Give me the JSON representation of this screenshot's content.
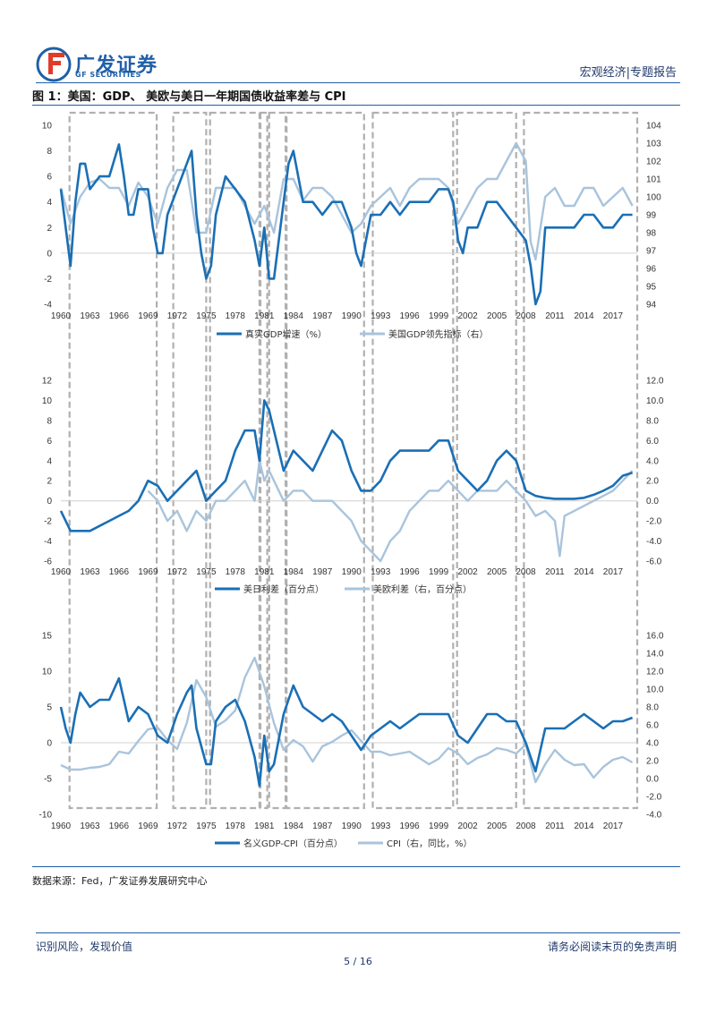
{
  "header": {
    "brand_cn": "广发证券",
    "brand_en": "GF SECURITIES",
    "doc_type": "宏观经济|专题报告"
  },
  "figure_title": "图 1：美国：GDP、 美欧与美日一年期国债收益率差与 CPI",
  "source": "数据来源：Fed，广发证券发展研究中心",
  "footer": {
    "left": "识别风险，发现价值",
    "right": "请务必阅读末页的免责声明",
    "page": "5 / 16"
  },
  "colors": {
    "primary": "#1a6fb5",
    "secondary": "#a9c4dc",
    "shade": "#b0b0b0",
    "accent": "#1f5fa8"
  },
  "recession_bands": [
    [
      1960.9,
      1969.9
    ],
    [
      1971.6,
      1975.0
    ],
    [
      1975.4,
      1980.5
    ],
    [
      1980.6,
      1981.3
    ],
    [
      1981.5,
      1983.2
    ],
    [
      1983.3,
      1991.3
    ],
    [
      1992.2,
      2000.5
    ],
    [
      2000.9,
      2007.0
    ],
    [
      2007.8,
      2019.5
    ]
  ],
  "chart_data": [
    {
      "type": "line",
      "title": "",
      "x_ticks": [
        "1960",
        "1963",
        "1966",
        "1969",
        "1972",
        "1975",
        "1978",
        "1981",
        "1984",
        "1987",
        "1990",
        "1993",
        "1996",
        "1999",
        "2002",
        "2005",
        "2008",
        "2011",
        "2014",
        "2017"
      ],
      "x_range": [
        1960,
        2019.5
      ],
      "ylim": [
        -4,
        10
      ],
      "ylim_right": [
        94,
        104
      ],
      "y_ticks": [
        "-4",
        "-2",
        "0",
        "2",
        "4",
        "6",
        "8",
        "10"
      ],
      "y_ticks_right": [
        "94",
        "95",
        "96",
        "97",
        "98",
        "99",
        "100",
        "101",
        "102",
        "103",
        "104"
      ],
      "series": [
        {
          "name": "真实GDP增速（%）",
          "axis": "left",
          "x": [
            1960,
            1960.5,
            1961,
            1961.5,
            1962,
            1962.5,
            1963,
            1964,
            1965,
            1966,
            1966.5,
            1967,
            1967.5,
            1968,
            1969,
            1969.5,
            1970,
            1970.5,
            1971,
            1972,
            1973,
            1973.5,
            1974,
            1974.5,
            1975,
            1975.5,
            1976,
            1977,
            1978,
            1979,
            1980,
            1980.5,
            1981,
            1981.5,
            1982,
            1982.5,
            1983,
            1983.5,
            1984,
            1984.5,
            1985,
            1986,
            1987,
            1988,
            1989,
            1990,
            1990.5,
            1991,
            1991.5,
            1992,
            1993,
            1994,
            1995,
            1996,
            1997,
            1998,
            1999,
            2000,
            2000.5,
            2001,
            2001.5,
            2002,
            2003,
            2004,
            2005,
            2006,
            2007,
            2008,
            2008.5,
            2009,
            2009.5,
            2010,
            2011,
            2012,
            2013,
            2014,
            2015,
            2016,
            2017,
            2018,
            2019
          ],
          "values": [
            5,
            2,
            -1,
            4,
            7,
            7,
            5,
            6,
            6,
            8.5,
            6,
            3,
            3,
            5,
            5,
            2,
            0,
            0,
            3,
            5,
            7,
            8,
            3,
            0,
            -2,
            -1,
            3,
            6,
            5,
            4,
            1,
            -1,
            2,
            -2,
            -2,
            1,
            4,
            7,
            8,
            6,
            4,
            4,
            3,
            4,
            4,
            2,
            0,
            -1,
            1,
            3,
            3,
            4,
            3,
            4,
            4,
            4,
            5,
            5,
            4,
            1,
            0,
            2,
            2,
            4,
            4,
            3,
            2,
            1,
            -1,
            -4,
            -3,
            2,
            2,
            2,
            2,
            3,
            3,
            2,
            2,
            3,
            3
          ]
        },
        {
          "name": "美国GDP领先指标（右）",
          "axis": "right",
          "x": [
            1960,
            1961,
            1962,
            1963,
            1964,
            1965,
            1966,
            1967,
            1968,
            1969,
            1970,
            1971,
            1972,
            1973,
            1974,
            1975,
            1976,
            1977,
            1978,
            1979,
            1980,
            1981,
            1982,
            1983,
            1984,
            1985,
            1986,
            1987,
            1988,
            1989,
            1990,
            1991,
            1992,
            1993,
            1994,
            1995,
            1996,
            1997,
            1998,
            1999,
            2000,
            2001,
            2002,
            2003,
            2004,
            2005,
            2006,
            2007,
            2008,
            2008.5,
            2009,
            2010,
            2011,
            2012,
            2013,
            2014,
            2015,
            2016,
            2017,
            2018,
            2019
          ],
          "values": [
            100.5,
            98.5,
            100,
            100.8,
            101,
            100.5,
            100.5,
            99.5,
            100.8,
            100,
            98.5,
            100.5,
            101.5,
            101.5,
            98,
            98,
            100.5,
            100.5,
            100.5,
            99.5,
            98.5,
            99.5,
            98,
            101,
            101,
            99.8,
            100.5,
            100.5,
            100,
            99,
            98,
            98.5,
            99.5,
            100,
            100.5,
            99.5,
            100.5,
            101,
            101,
            101,
            100.5,
            98.5,
            99.5,
            100.5,
            101,
            101,
            102,
            103,
            102,
            97.5,
            96.5,
            100,
            100.5,
            99.5,
            99.5,
            100.5,
            100.5,
            99.5,
            100,
            100.5,
            99.5
          ]
        }
      ],
      "legend": [
        "真实GDP增速（%）",
        "美国GDP领先指标（右）"
      ]
    },
    {
      "type": "line",
      "title": "",
      "x_ticks": [
        "1960",
        "1963",
        "1966",
        "1969",
        "1972",
        "1975",
        "1978",
        "1981",
        "1984",
        "1987",
        "1990",
        "1993",
        "1996",
        "1999",
        "2002",
        "2005",
        "2008",
        "2011",
        "2014",
        "2017"
      ],
      "x_range": [
        1960,
        2019.5
      ],
      "ylim": [
        -6,
        12
      ],
      "ylim_right": [
        -6,
        12
      ],
      "y_ticks": [
        "-6",
        "-4",
        "-2",
        "0",
        "2",
        "4",
        "6",
        "8",
        "10",
        "12"
      ],
      "y_ticks_right": [
        "-6.0",
        "-4.0",
        "-2.0",
        "0.0",
        "2.0",
        "4.0",
        "6.0",
        "8.0",
        "10.0",
        "12.0"
      ],
      "series": [
        {
          "name": "美日利差（百分点）",
          "axis": "left",
          "x": [
            1960,
            1961,
            1962,
            1963,
            1964,
            1965,
            1966,
            1967,
            1968,
            1969,
            1970,
            1971,
            1972,
            1973,
            1974,
            1975,
            1976,
            1977,
            1978,
            1979,
            1980,
            1980.5,
            1981,
            1981.5,
            1982,
            1983,
            1984,
            1985,
            1986,
            1987,
            1988,
            1989,
            1990,
            1991,
            1992,
            1993,
            1994,
            1995,
            1996,
            1997,
            1998,
            1999,
            2000,
            2001,
            2002,
            2003,
            2004,
            2005,
            2006,
            2007,
            2008,
            2009,
            2010,
            2011,
            2012,
            2013,
            2014,
            2015,
            2016,
            2017,
            2018,
            2019
          ],
          "values": [
            -1,
            -3,
            -3,
            -3,
            -2.5,
            -2,
            -1.5,
            -1,
            0,
            2,
            1.5,
            0,
            1,
            2,
            3,
            0,
            1,
            2,
            5,
            7,
            7,
            4,
            10,
            9,
            7,
            3,
            5,
            4,
            3,
            5,
            7,
            6,
            3,
            1,
            1,
            2,
            4,
            5,
            5,
            5,
            5,
            6,
            6,
            3,
            2,
            1,
            2,
            4,
            5,
            4,
            1,
            0.5,
            0.3,
            0.2,
            0.2,
            0.2,
            0.3,
            0.6,
            1,
            1.5,
            2.5,
            2.8
          ]
        },
        {
          "name": "美欧利差（右，百分点）",
          "axis": "right",
          "x": [
            1969,
            1970,
            1971,
            1972,
            1973,
            1974,
            1975,
            1976,
            1977,
            1978,
            1979,
            1980,
            1980.5,
            1981,
            1981.5,
            1982,
            1983,
            1984,
            1985,
            1986,
            1987,
            1988,
            1989,
            1990,
            1991,
            1992,
            1993,
            1994,
            1995,
            1996,
            1997,
            1998,
            1999,
            2000,
            2001,
            2002,
            2003,
            2004,
            2005,
            2006,
            2007,
            2008,
            2009,
            2010,
            2011,
            2011.5,
            2012,
            2013,
            2014,
            2015,
            2016,
            2017,
            2018,
            2019
          ],
          "values": [
            1,
            0,
            -2,
            -1,
            -3,
            -1,
            -2,
            0,
            0,
            1,
            2,
            0,
            4,
            2,
            3,
            2,
            0,
            1,
            1,
            0,
            0,
            0,
            -1,
            -2,
            -4,
            -5,
            -6,
            -4,
            -3,
            -1,
            0,
            1,
            1,
            2,
            1,
            0,
            1,
            1,
            1,
            2,
            1,
            0,
            -1.5,
            -1,
            -2,
            -5.5,
            -1.5,
            -1,
            -0.5,
            0,
            0.5,
            1,
            2,
            3
          ]
        }
      ],
      "legend": [
        "美日利差（百分点）",
        "美欧利差（右，百分点）"
      ]
    },
    {
      "type": "line",
      "title": "",
      "x_ticks": [
        "1960",
        "1963",
        "1966",
        "1969",
        "1972",
        "1975",
        "1978",
        "1981",
        "1984",
        "1987",
        "1990",
        "1993",
        "1996",
        "1999",
        "2002",
        "2005",
        "2008",
        "2011",
        "2014",
        "2017"
      ],
      "x_range": [
        1960,
        2019.5
      ],
      "ylim": [
        -10,
        15
      ],
      "ylim_right": [
        -4,
        16
      ],
      "y_ticks": [
        "-10",
        "-5",
        "0",
        "5",
        "10",
        "15"
      ],
      "y_ticks_right": [
        "-4.0",
        "-2.0",
        "0.0",
        "2.0",
        "4.0",
        "6.0",
        "8.0",
        "10.0",
        "12.0",
        "14.0",
        "16.0"
      ],
      "series": [
        {
          "name": "名义GDP-CPI（百分点）",
          "axis": "left",
          "x": [
            1960,
            1960.5,
            1961,
            1961.5,
            1962,
            1963,
            1964,
            1965,
            1966,
            1966.5,
            1967,
            1968,
            1969,
            1970,
            1971,
            1972,
            1973,
            1973.5,
            1974,
            1975,
            1975.5,
            1976,
            1977,
            1978,
            1979,
            1980,
            1980.5,
            1981,
            1981.5,
            1982,
            1983,
            1984,
            1985,
            1986,
            1987,
            1988,
            1989,
            1990,
            1991,
            1992,
            1993,
            1994,
            1995,
            1996,
            1997,
            1998,
            1999,
            2000,
            2001,
            2002,
            2003,
            2004,
            2005,
            2006,
            2007,
            2008,
            2008.5,
            2009,
            2010,
            2011,
            2012,
            2013,
            2014,
            2015,
            2016,
            2017,
            2018,
            2019
          ],
          "values": [
            5,
            2,
            0,
            4,
            7,
            5,
            6,
            6,
            9,
            6,
            3,
            5,
            4,
            1,
            0,
            4,
            7,
            8,
            2,
            -3,
            -3,
            3,
            5,
            6,
            3,
            -2,
            -6,
            1,
            -4,
            -3,
            4,
            8,
            5,
            4,
            3,
            4,
            3,
            1,
            -1,
            1,
            2,
            3,
            2,
            3,
            4,
            4,
            4,
            4,
            1,
            0,
            2,
            4,
            4,
            3,
            3,
            0,
            -2,
            -4,
            2,
            2,
            2,
            3,
            4,
            3,
            2,
            3,
            3,
            3.5
          ]
        },
        {
          "name": "CPI（右，同比，%）",
          "axis": "right",
          "x": [
            1960,
            1961,
            1962,
            1963,
            1964,
            1965,
            1966,
            1967,
            1968,
            1969,
            1970,
            1971,
            1972,
            1973,
            1974,
            1975,
            1976,
            1977,
            1978,
            1979,
            1980,
            1981,
            1982,
            1983,
            1984,
            1985,
            1986,
            1987,
            1988,
            1989,
            1990,
            1991,
            1992,
            1993,
            1994,
            1995,
            1996,
            1997,
            1998,
            1999,
            2000,
            2001,
            2002,
            2003,
            2004,
            2005,
            2006,
            2007,
            2008,
            2009,
            2010,
            2011,
            2012,
            2013,
            2014,
            2015,
            2016,
            2017,
            2018,
            2019
          ],
          "values": [
            1.5,
            1,
            1,
            1.2,
            1.3,
            1.6,
            3,
            2.8,
            4.2,
            5.5,
            5.7,
            4.3,
            3.3,
            6.2,
            11,
            9.1,
            5.8,
            6.5,
            7.6,
            11.3,
            13.5,
            10.3,
            6.2,
            3.2,
            4.3,
            3.6,
            1.9,
            3.6,
            4.1,
            4.8,
            5.4,
            4.2,
            3,
            3,
            2.6,
            2.8,
            3,
            2.3,
            1.6,
            2.2,
            3.4,
            2.8,
            1.6,
            2.3,
            2.7,
            3.4,
            3.2,
            2.8,
            3.8,
            -0.4,
            1.6,
            3.2,
            2.1,
            1.5,
            1.6,
            0.1,
            1.3,
            2.1,
            2.4,
            1.8
          ]
        }
      ],
      "legend": [
        "名义GDP-CPI（百分点）",
        "CPI（右，同比，%）"
      ]
    }
  ]
}
